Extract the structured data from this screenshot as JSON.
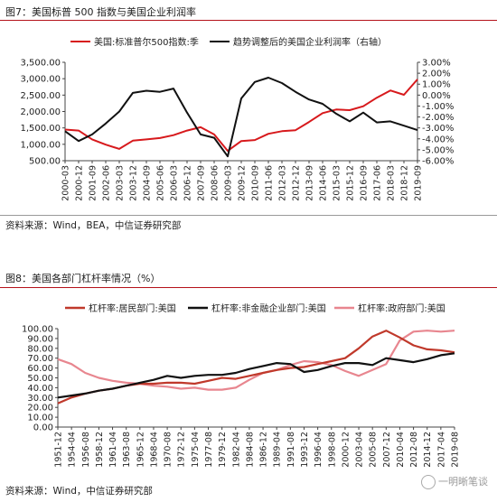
{
  "fig1": {
    "title": "图7：美国标普 500 指数与美国企业利润率",
    "source": "资料来源：Wind，BEA，中信证券研究部"
  },
  "fig2": {
    "title": "图8：美国各部门杠杆率情况（%）",
    "source": "资料来源：Wind，中信证券研究部"
  },
  "watermark": "一明晰笔谈",
  "chart_data": [
    {
      "type": "line",
      "title": "",
      "legend_position": "top",
      "x": [
        "2000-03",
        "2000-12",
        "2001-09",
        "2002-06",
        "2003-03",
        "2003-12",
        "2004-09",
        "2005-06",
        "2006-03",
        "2006-12",
        "2007-09",
        "2008-06",
        "2009-03",
        "2009-12",
        "2010-09",
        "2011-06",
        "2012-03",
        "2012-12",
        "2013-09",
        "2014-06",
        "2015-03",
        "2015-12",
        "2016-09",
        "2017-06",
        "2018-03",
        "2018-12",
        "2019-09"
      ],
      "ylim_left": [
        500,
        3500
      ],
      "yticks_left": [
        "3,500.00",
        "3,000.00",
        "2,500.00",
        "2,000.00",
        "1,500.00",
        "1,000.00",
        "500.00"
      ],
      "ylim_right": [
        -6,
        3
      ],
      "yticks_right": [
        "3.00%",
        "2.00%",
        "1.00%",
        "0.00%",
        "-1.00%",
        "-2.00%",
        "-3.00%",
        "-4.00%",
        "-5.00%",
        "-6.00%"
      ],
      "series": [
        {
          "name": "美国:标准普尔500指数:季",
          "axis": "left",
          "color": "#d7191c",
          "values": [
            1450,
            1420,
            1150,
            990,
            860,
            1110,
            1150,
            1190,
            1280,
            1420,
            1520,
            1300,
            800,
            1100,
            1130,
            1320,
            1400,
            1430,
            1680,
            1950,
            2060,
            2040,
            2160,
            2420,
            2640,
            2510,
            2980
          ]
        },
        {
          "name": "趋势调整后的美国企业利润率（右轴）",
          "axis": "right",
          "color": "#111111",
          "values": [
            -3.3,
            -4.2,
            -3.6,
            -2.6,
            -1.5,
            0.2,
            0.4,
            0.3,
            0.6,
            -1.6,
            -3.6,
            -3.9,
            -5.6,
            -0.3,
            1.2,
            1.6,
            1.1,
            0.3,
            -0.4,
            -0.8,
            -1.7,
            -2.4,
            -1.6,
            -2.5,
            -2.4,
            -2.8,
            -3.2
          ]
        }
      ]
    },
    {
      "type": "line",
      "title": "",
      "legend_position": "top",
      "x": [
        "1951-12",
        "1954-04",
        "1956-08",
        "1958-12",
        "1961-04",
        "1963-08",
        "1965-12",
        "1968-04",
        "1970-08",
        "1972-12",
        "1975-04",
        "1977-08",
        "1979-12",
        "1982-04",
        "1984-08",
        "1986-12",
        "1989-04",
        "1991-08",
        "1993-12",
        "1996-04",
        "1998-08",
        "2000-12",
        "2003-04",
        "2005-08",
        "2007-12",
        "2010-04",
        "2012-08",
        "2014-12",
        "2017-04",
        "2019-08"
      ],
      "ylim": [
        0,
        100
      ],
      "yticks": [
        "100.00",
        "90.00",
        "80.00",
        "70.00",
        "60.00",
        "50.00",
        "40.00",
        "30.00",
        "20.00",
        "10.00",
        "0.00"
      ],
      "series": [
        {
          "name": "杠杆率:居民部门:美国",
          "color": "#c0392b",
          "values": [
            24,
            30,
            34,
            37,
            39,
            42,
            44,
            44,
            45,
            45,
            44,
            47,
            50,
            49,
            52,
            55,
            58,
            60,
            61,
            64,
            67,
            70,
            80,
            92,
            98,
            91,
            83,
            79,
            78,
            76
          ]
        },
        {
          "name": "杠杆率:非金融企业部门:美国",
          "color": "#111111",
          "values": [
            30,
            32,
            34,
            37,
            39,
            42,
            45,
            48,
            52,
            50,
            52,
            53,
            53,
            55,
            59,
            62,
            65,
            64,
            56,
            58,
            62,
            65,
            65,
            63,
            70,
            68,
            66,
            69,
            73,
            75
          ]
        },
        {
          "name": "杠杆率:政府部门:美国",
          "color": "#e8868f",
          "values": [
            69,
            64,
            55,
            50,
            47,
            45,
            44,
            42,
            41,
            39,
            40,
            38,
            38,
            40,
            48,
            55,
            58,
            63,
            67,
            66,
            63,
            57,
            52,
            58,
            64,
            88,
            97,
            98,
            97,
            98
          ]
        }
      ]
    }
  ]
}
